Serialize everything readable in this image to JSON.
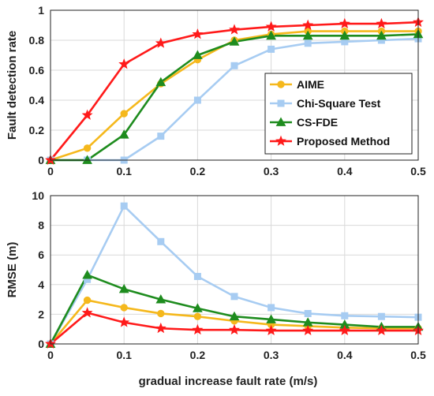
{
  "colors": {
    "AIME": "#f5b81c",
    "Chi-Square Test": "#a7ccf2",
    "CS-FDE": "#1e8c1e",
    "Proposed Method": "#ff1a1a"
  },
  "chart_data": [
    {
      "type": "line",
      "ylabel": "Fault detection rate",
      "xlabel": "",
      "xlim": [
        0,
        0.5
      ],
      "ylim": [
        0,
        1
      ],
      "xticks": [
        "0",
        "0.1",
        "0.2",
        "0.3",
        "0.4",
        "0.5"
      ],
      "yticks": [
        "0",
        "0.2",
        "0.4",
        "0.6",
        "0.8",
        "1"
      ],
      "grid": true,
      "legend_position": "right",
      "x": [
        0,
        0.05,
        0.1,
        0.15,
        0.2,
        0.25,
        0.3,
        0.35,
        0.4,
        0.45,
        0.5
      ],
      "series": [
        {
          "name": "AIME",
          "marker": "circle",
          "values": [
            0,
            0.08,
            0.31,
            0.51,
            0.67,
            0.8,
            0.84,
            0.86,
            0.86,
            0.86,
            0.86
          ]
        },
        {
          "name": "Chi-Square Test",
          "marker": "square",
          "values": [
            0,
            0,
            0,
            0.16,
            0.4,
            0.63,
            0.74,
            0.78,
            0.79,
            0.8,
            0.81
          ]
        },
        {
          "name": "CS-FDE",
          "marker": "triangle",
          "values": [
            0,
            0,
            0.17,
            0.52,
            0.7,
            0.79,
            0.83,
            0.83,
            0.83,
            0.83,
            0.84
          ]
        },
        {
          "name": "Proposed Method",
          "marker": "star",
          "values": [
            0,
            0.3,
            0.64,
            0.78,
            0.84,
            0.87,
            0.89,
            0.9,
            0.91,
            0.91,
            0.92
          ]
        }
      ]
    },
    {
      "type": "line",
      "ylabel": "RMSE (m)",
      "xlabel": "gradual increase fault rate (m/s)",
      "xlim": [
        0,
        0.5
      ],
      "ylim": [
        0,
        10
      ],
      "xticks": [
        "0",
        "0.1",
        "0.2",
        "0.3",
        "0.4",
        "0.5"
      ],
      "yticks": [
        "0",
        "2",
        "4",
        "6",
        "8",
        "10"
      ],
      "grid": true,
      "x": [
        0,
        0.05,
        0.1,
        0.15,
        0.2,
        0.25,
        0.3,
        0.35,
        0.4,
        0.45,
        0.5
      ],
      "series": [
        {
          "name": "AIME",
          "marker": "circle",
          "values": [
            0,
            2.95,
            2.45,
            2.05,
            1.85,
            1.55,
            1.3,
            1.2,
            1.1,
            1.05,
            1.05
          ]
        },
        {
          "name": "Chi-Square Test",
          "marker": "square",
          "values": [
            0,
            4.35,
            9.3,
            6.9,
            4.55,
            3.2,
            2.45,
            2.05,
            1.9,
            1.85,
            1.8
          ]
        },
        {
          "name": "CS-FDE",
          "marker": "triangle",
          "values": [
            0,
            4.65,
            3.7,
            3.0,
            2.4,
            1.85,
            1.65,
            1.45,
            1.3,
            1.15,
            1.15
          ]
        },
        {
          "name": "Proposed Method",
          "marker": "star",
          "values": [
            0,
            2.1,
            1.45,
            1.05,
            0.95,
            0.95,
            0.9,
            0.9,
            0.9,
            0.9,
            0.9
          ]
        }
      ]
    }
  ]
}
